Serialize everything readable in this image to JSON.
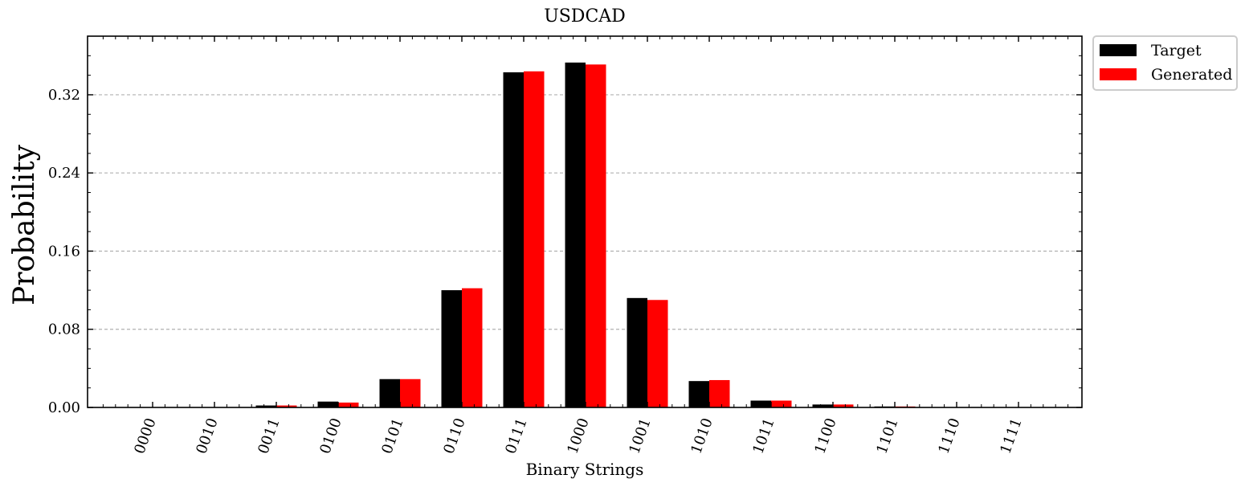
{
  "chart_data": {
    "type": "bar",
    "title": "USDCAD",
    "xlabel": "Binary Strings",
    "ylabel": "Probability",
    "categories": [
      "0000",
      "0010",
      "0011",
      "0100",
      "0101",
      "0110",
      "0111",
      "1000",
      "1001",
      "1010",
      "1011",
      "1100",
      "1101",
      "1110",
      "1111"
    ],
    "series": [
      {
        "name": "Target",
        "color": "#000000",
        "values": [
          0.0,
          0.0,
          0.002,
          0.006,
          0.029,
          0.12,
          0.343,
          0.353,
          0.112,
          0.027,
          0.007,
          0.003,
          0.001,
          0.0,
          0.0
        ]
      },
      {
        "name": "Generated",
        "color": "#ff0000",
        "values": [
          0.0,
          0.0,
          0.002,
          0.005,
          0.029,
          0.122,
          0.344,
          0.351,
          0.11,
          0.028,
          0.007,
          0.003,
          0.001,
          0.0,
          0.0
        ]
      }
    ],
    "ylim": [
      0,
      0.38
    ],
    "yticks": [
      "0.00",
      "0.08",
      "0.16",
      "0.24",
      "0.32"
    ],
    "ytick_values": [
      0.0,
      0.08,
      0.16,
      0.24,
      0.32
    ],
    "grid": "horizontal dashed",
    "legend_position": "outside-top-right"
  }
}
